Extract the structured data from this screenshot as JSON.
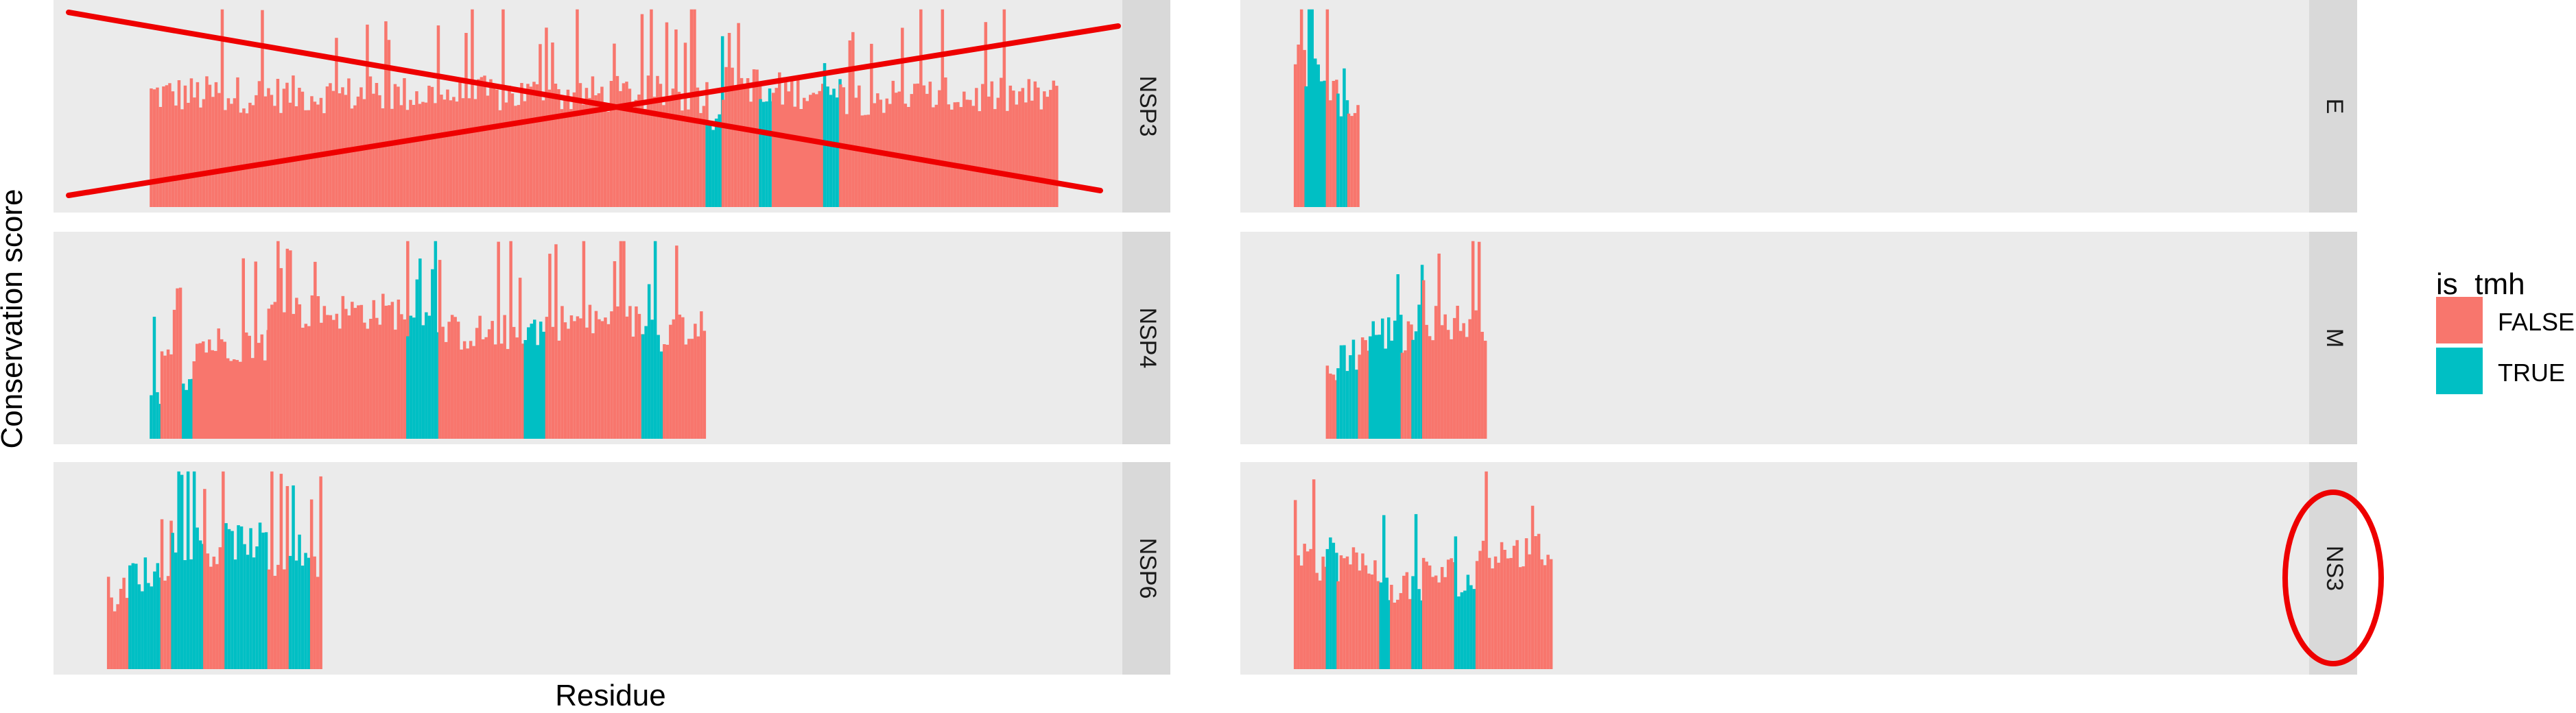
{
  "chart_data": {
    "type": "bar",
    "xlabel": "Residue",
    "ylabel": "Conservation score",
    "legend": {
      "title": "is_tmh",
      "placement": "right",
      "entries": [
        {
          "label": "FALSE",
          "color": "#F8766D"
        },
        {
          "label": "TRUE",
          "color": "#00BFC4"
        }
      ]
    },
    "grid": false,
    "facet_layout": "3 rows x 2 columns, strip labels on the right of each panel",
    "facets": [
      {
        "label": "NSP3",
        "row": 0,
        "col": 0,
        "crossed_out": true,
        "note": "",
        "segments": [
          {
            "start": 0.09,
            "end": 0.61,
            "level": 0.53,
            "tmh": false
          },
          {
            "start": 0.61,
            "end": 0.625,
            "level": 0.45,
            "tmh": true
          },
          {
            "start": 0.625,
            "end": 0.66,
            "level": 0.58,
            "tmh": false
          },
          {
            "start": 0.66,
            "end": 0.672,
            "level": 0.5,
            "tmh": true
          },
          {
            "start": 0.672,
            "end": 0.72,
            "level": 0.55,
            "tmh": false
          },
          {
            "start": 0.72,
            "end": 0.735,
            "level": 0.6,
            "tmh": true
          },
          {
            "start": 0.735,
            "end": 0.94,
            "level": 0.52,
            "tmh": false
          }
        ]
      },
      {
        "label": "E",
        "row": 0,
        "col": 1,
        "crossed_out": false,
        "note": "",
        "segments": [
          {
            "start": 0.05,
            "end": 0.06,
            "level": 0.75,
            "tmh": false
          },
          {
            "start": 0.06,
            "end": 0.08,
            "level": 0.62,
            "tmh": true
          },
          {
            "start": 0.08,
            "end": 0.09,
            "level": 0.55,
            "tmh": false
          },
          {
            "start": 0.09,
            "end": 0.1,
            "level": 0.45,
            "tmh": true
          },
          {
            "start": 0.1,
            "end": 0.11,
            "level": 0.4,
            "tmh": false
          }
        ]
      },
      {
        "label": "NSP4",
        "row": 1,
        "col": 0,
        "crossed_out": false,
        "note": "",
        "segments": [
          {
            "start": 0.09,
            "end": 0.1,
            "level": 0.18,
            "tmh": true
          },
          {
            "start": 0.1,
            "end": 0.12,
            "level": 0.35,
            "tmh": false
          },
          {
            "start": 0.12,
            "end": 0.13,
            "level": 0.3,
            "tmh": true
          },
          {
            "start": 0.13,
            "end": 0.2,
            "level": 0.45,
            "tmh": false
          },
          {
            "start": 0.2,
            "end": 0.33,
            "level": 0.6,
            "tmh": false
          },
          {
            "start": 0.33,
            "end": 0.36,
            "level": 0.55,
            "tmh": true
          },
          {
            "start": 0.36,
            "end": 0.44,
            "level": 0.5,
            "tmh": false
          },
          {
            "start": 0.44,
            "end": 0.46,
            "level": 0.52,
            "tmh": true
          },
          {
            "start": 0.46,
            "end": 0.55,
            "level": 0.55,
            "tmh": false
          },
          {
            "start": 0.55,
            "end": 0.57,
            "level": 0.5,
            "tmh": true
          },
          {
            "start": 0.57,
            "end": 0.61,
            "level": 0.52,
            "tmh": false
          }
        ]
      },
      {
        "label": "M",
        "row": 1,
        "col": 1,
        "crossed_out": false,
        "note": "",
        "segments": [
          {
            "start": 0.08,
            "end": 0.09,
            "level": 0.3,
            "tmh": false
          },
          {
            "start": 0.09,
            "end": 0.11,
            "level": 0.4,
            "tmh": true
          },
          {
            "start": 0.11,
            "end": 0.12,
            "level": 0.45,
            "tmh": false
          },
          {
            "start": 0.12,
            "end": 0.15,
            "level": 0.5,
            "tmh": true
          },
          {
            "start": 0.15,
            "end": 0.16,
            "level": 0.48,
            "tmh": false
          },
          {
            "start": 0.16,
            "end": 0.17,
            "level": 0.55,
            "tmh": true
          },
          {
            "start": 0.17,
            "end": 0.23,
            "level": 0.55,
            "tmh": false
          }
        ]
      },
      {
        "label": "NSP6",
        "row": 2,
        "col": 0,
        "crossed_out": false,
        "note": "",
        "segments": [
          {
            "start": 0.05,
            "end": 0.07,
            "level": 0.35,
            "tmh": false
          },
          {
            "start": 0.07,
            "end": 0.1,
            "level": 0.45,
            "tmh": true
          },
          {
            "start": 0.1,
            "end": 0.11,
            "level": 0.5,
            "tmh": false
          },
          {
            "start": 0.11,
            "end": 0.14,
            "level": 0.6,
            "tmh": true
          },
          {
            "start": 0.14,
            "end": 0.16,
            "level": 0.55,
            "tmh": false
          },
          {
            "start": 0.16,
            "end": 0.2,
            "level": 0.6,
            "tmh": true
          },
          {
            "start": 0.2,
            "end": 0.22,
            "level": 0.5,
            "tmh": false
          },
          {
            "start": 0.22,
            "end": 0.24,
            "level": 0.55,
            "tmh": true
          },
          {
            "start": 0.24,
            "end": 0.25,
            "level": 0.45,
            "tmh": false
          }
        ]
      },
      {
        "label": "NS3",
        "row": 2,
        "col": 1,
        "crossed_out": false,
        "note": "circled",
        "segments": [
          {
            "start": 0.05,
            "end": 0.08,
            "level": 0.5,
            "tmh": false
          },
          {
            "start": 0.08,
            "end": 0.09,
            "level": 0.55,
            "tmh": true
          },
          {
            "start": 0.09,
            "end": 0.13,
            "level": 0.5,
            "tmh": false
          },
          {
            "start": 0.13,
            "end": 0.14,
            "level": 0.35,
            "tmh": true
          },
          {
            "start": 0.14,
            "end": 0.16,
            "level": 0.4,
            "tmh": false
          },
          {
            "start": 0.16,
            "end": 0.17,
            "level": 0.35,
            "tmh": true
          },
          {
            "start": 0.17,
            "end": 0.2,
            "level": 0.45,
            "tmh": false
          },
          {
            "start": 0.2,
            "end": 0.22,
            "level": 0.4,
            "tmh": true
          },
          {
            "start": 0.22,
            "end": 0.29,
            "level": 0.55,
            "tmh": false
          }
        ]
      }
    ]
  }
}
